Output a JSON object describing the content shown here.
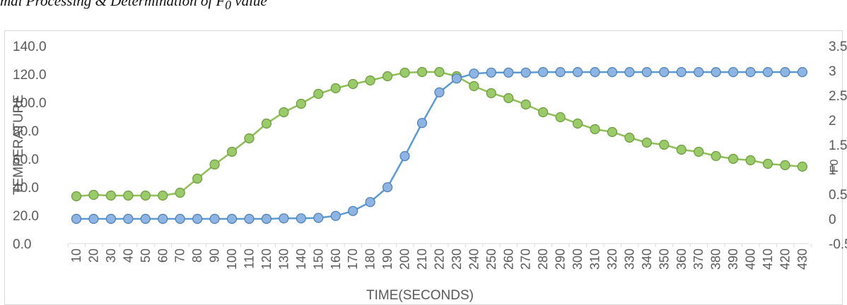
{
  "caption": "mal Processing & Determination of F",
  "caption_sub": "0",
  "caption_tail": " value",
  "chart_data": {
    "type": "line",
    "x": [
      10,
      20,
      30,
      40,
      50,
      60,
      70,
      80,
      90,
      100,
      110,
      120,
      130,
      140,
      150,
      160,
      170,
      180,
      190,
      200,
      210,
      220,
      230,
      240,
      250,
      260,
      270,
      280,
      290,
      300,
      310,
      320,
      330,
      340,
      350,
      360,
      370,
      380,
      390,
      400,
      410,
      420,
      430
    ],
    "xlabel": "TIME(SECONDS)",
    "ylabel": "TEMPERATURE",
    "y2label": "F0",
    "ylim": [
      0,
      140
    ],
    "y2lim": [
      -0.5,
      3.5
    ],
    "yticks": [
      "0.0",
      "20.0",
      "40.0",
      "60.0",
      "80.0",
      "100.0",
      "120.0",
      "140.0"
    ],
    "y2ticks": [
      "-0.5",
      "0",
      "0.5",
      "1",
      "1.5",
      "2",
      "2.5",
      "3",
      "3.5"
    ],
    "grid": false,
    "series": [
      {
        "color": "#8fbf58",
        "marker_fill": "#9bca6b",
        "marker_edge": "#6a9a3a",
        "axis": "left",
        "values": [
          33.5,
          34.5,
          34,
          34,
          34,
          34,
          36,
          46,
          56,
          65,
          74.5,
          85,
          93,
          99,
          106,
          110,
          113,
          115.5,
          118.5,
          121,
          121.5,
          121.5,
          118.5,
          111.5,
          106.5,
          103,
          98.5,
          93,
          89.5,
          85,
          81,
          79,
          75,
          71.5,
          70,
          66.5,
          65,
          62,
          60,
          59,
          56.5,
          55.5,
          54.5
        ]
      },
      {
        "color": "#5b9bd5",
        "marker_fill": "#8db4e2",
        "marker_edge": "#4a7eb5",
        "axis": "right",
        "values": [
          0,
          0,
          0,
          0,
          0,
          0,
          0,
          0,
          0,
          0,
          0,
          0,
          0.01,
          0.01,
          0.02,
          0.06,
          0.16,
          0.34,
          0.64,
          1.27,
          1.94,
          2.56,
          2.84,
          2.94,
          2.96,
          2.96,
          2.96,
          2.97,
          2.97,
          2.97,
          2.97,
          2.97,
          2.97,
          2.97,
          2.97,
          2.97,
          2.97,
          2.97,
          2.97,
          2.97,
          2.97,
          2.97,
          2.97
        ]
      }
    ]
  }
}
